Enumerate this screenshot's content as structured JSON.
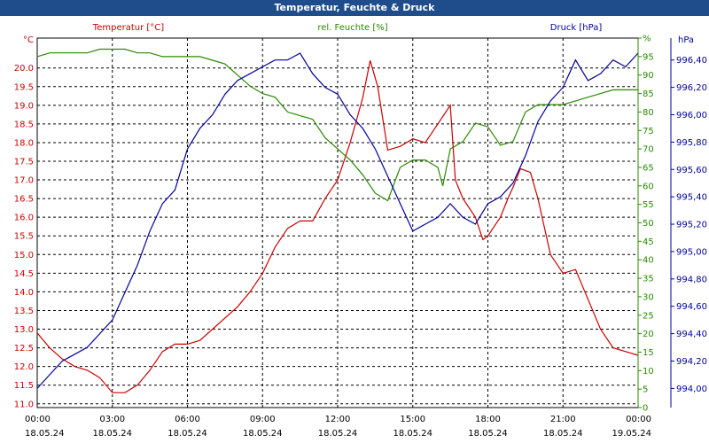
{
  "window": {
    "title": "Temperatur, Feuchte & Druck"
  },
  "chart_data": {
    "type": "line",
    "title": "Temperatur, Feuchte & Druck",
    "axes": {
      "temperature": {
        "label": "Temperatur [°C]",
        "unit": "°C",
        "color": "#cc0000",
        "range": [
          10.9,
          20.8
        ],
        "ticks": [
          "11.0",
          "11.5",
          "12.0",
          "12.5",
          "13.0",
          "13.5",
          "14.0",
          "14.5",
          "15.0",
          "15.5",
          "16.0",
          "16.5",
          "17.0",
          "17.5",
          "18.0",
          "18.5",
          "19.0",
          "19.5",
          "20.0"
        ]
      },
      "humidity": {
        "label": "rel. Feuchte [%]",
        "unit": "%",
        "color": "#2a8a00",
        "range": [
          0,
          100
        ],
        "ticks": [
          "0",
          "5",
          "10",
          "15",
          "20",
          "25",
          "30",
          "35",
          "40",
          "45",
          "50",
          "55",
          "60",
          "65",
          "70",
          "75",
          "80",
          "85",
          "90",
          "95",
          "%"
        ]
      },
      "pressure": {
        "label": "Druck [hPa]",
        "unit": "hPa",
        "color": "#000099",
        "range": [
          993.86,
          996.56
        ],
        "ticks": [
          "994,00",
          "994,20",
          "994,40",
          "994,60",
          "994,80",
          "995,00",
          "995,20",
          "995,40",
          "995,60",
          "995,80",
          "996,00",
          "996,20",
          "996,40"
        ]
      }
    },
    "x_ticks": [
      {
        "time": "00:00",
        "date": "18.05.24"
      },
      {
        "time": "03:00",
        "date": "18.05.24"
      },
      {
        "time": "06:00",
        "date": "18.05.24"
      },
      {
        "time": "09:00",
        "date": "18.05.24"
      },
      {
        "time": "12:00",
        "date": "18.05.24"
      },
      {
        "time": "15:00",
        "date": "18.05.24"
      },
      {
        "time": "18:00",
        "date": "18.05.24"
      },
      {
        "time": "21:00",
        "date": "18.05.24"
      },
      {
        "time": "00:00",
        "date": "19.05.24"
      }
    ],
    "x_range_hours": [
      0,
      24
    ],
    "series": [
      {
        "name": "Temperatur",
        "axis": "temperature",
        "color": "#cc0000",
        "points": [
          [
            0,
            12.9
          ],
          [
            0.5,
            12.5
          ],
          [
            1,
            12.2
          ],
          [
            1.5,
            12.0
          ],
          [
            2,
            11.9
          ],
          [
            2.5,
            11.7
          ],
          [
            3,
            11.3
          ],
          [
            3.5,
            11.3
          ],
          [
            4,
            11.5
          ],
          [
            4.5,
            11.9
          ],
          [
            5,
            12.4
          ],
          [
            5.5,
            12.6
          ],
          [
            6,
            12.6
          ],
          [
            6.5,
            12.7
          ],
          [
            7,
            13.0
          ],
          [
            7.5,
            13.3
          ],
          [
            8,
            13.6
          ],
          [
            8.5,
            14.0
          ],
          [
            9,
            14.5
          ],
          [
            9.5,
            15.2
          ],
          [
            10,
            15.7
          ],
          [
            10.5,
            15.9
          ],
          [
            11,
            15.9
          ],
          [
            11.5,
            16.5
          ],
          [
            12,
            17.0
          ],
          [
            12.5,
            18.0
          ],
          [
            13,
            19.2
          ],
          [
            13.3,
            20.2
          ],
          [
            13.6,
            19.5
          ],
          [
            14,
            17.8
          ],
          [
            14.5,
            17.9
          ],
          [
            15,
            18.1
          ],
          [
            15.5,
            18.0
          ],
          [
            16,
            18.5
          ],
          [
            16.5,
            19.0
          ],
          [
            16.7,
            17.0
          ],
          [
            17,
            16.5
          ],
          [
            17.5,
            16.0
          ],
          [
            17.8,
            15.4
          ],
          [
            18,
            15.5
          ],
          [
            18.5,
            16.0
          ],
          [
            18.8,
            16.5
          ],
          [
            19,
            16.8
          ],
          [
            19.3,
            17.3
          ],
          [
            19.7,
            17.2
          ],
          [
            20,
            16.5
          ],
          [
            20.5,
            15.0
          ],
          [
            21,
            14.5
          ],
          [
            21.5,
            14.6
          ],
          [
            22,
            13.8
          ],
          [
            22.5,
            13.0
          ],
          [
            23,
            12.5
          ],
          [
            23.5,
            12.4
          ],
          [
            24,
            12.3
          ]
        ]
      },
      {
        "name": "rel. Feuchte",
        "axis": "humidity",
        "color": "#2a8a00",
        "points": [
          [
            0,
            95
          ],
          [
            0.5,
            96
          ],
          [
            1,
            96
          ],
          [
            1.5,
            96
          ],
          [
            2,
            96
          ],
          [
            2.5,
            97
          ],
          [
            3,
            97
          ],
          [
            3.5,
            97
          ],
          [
            4,
            96
          ],
          [
            4.5,
            96
          ],
          [
            5,
            95
          ],
          [
            5.5,
            95
          ],
          [
            6,
            95
          ],
          [
            6.5,
            95
          ],
          [
            7,
            94
          ],
          [
            7.5,
            93
          ],
          [
            8,
            90
          ],
          [
            8.5,
            87
          ],
          [
            9,
            85
          ],
          [
            9.5,
            84
          ],
          [
            10,
            80
          ],
          [
            10.5,
            79
          ],
          [
            11,
            78
          ],
          [
            11.5,
            73
          ],
          [
            12,
            70
          ],
          [
            12.5,
            67
          ],
          [
            13,
            63
          ],
          [
            13.5,
            58
          ],
          [
            14,
            56
          ],
          [
            14.5,
            65
          ],
          [
            15,
            67
          ],
          [
            15.5,
            67
          ],
          [
            16,
            65
          ],
          [
            16.2,
            60
          ],
          [
            16.5,
            70
          ],
          [
            17,
            72
          ],
          [
            17.5,
            77
          ],
          [
            18,
            76
          ],
          [
            18.5,
            71
          ],
          [
            19,
            72
          ],
          [
            19.5,
            80
          ],
          [
            20,
            82
          ],
          [
            20.5,
            82
          ],
          [
            21,
            82
          ],
          [
            21.5,
            83
          ],
          [
            22,
            84
          ],
          [
            22.5,
            85
          ],
          [
            23,
            86
          ],
          [
            23.5,
            86
          ],
          [
            24,
            86
          ]
        ]
      },
      {
        "name": "Druck",
        "axis": "pressure",
        "color": "#000099",
        "points": [
          [
            0,
            994.0
          ],
          [
            0.5,
            994.1
          ],
          [
            1,
            994.2
          ],
          [
            1.5,
            994.25
          ],
          [
            2,
            994.3
          ],
          [
            2.5,
            994.4
          ],
          [
            3,
            994.5
          ],
          [
            3.5,
            994.7
          ],
          [
            4,
            994.9
          ],
          [
            4.5,
            995.15
          ],
          [
            5,
            995.35
          ],
          [
            5.5,
            995.45
          ],
          [
            6,
            995.75
          ],
          [
            6.5,
            995.9
          ],
          [
            7,
            996.0
          ],
          [
            7.5,
            996.15
          ],
          [
            8,
            996.25
          ],
          [
            8.5,
            996.3
          ],
          [
            9,
            996.35
          ],
          [
            9.5,
            996.4
          ],
          [
            10,
            996.4
          ],
          [
            10.5,
            996.45
          ],
          [
            11,
            996.3
          ],
          [
            11.5,
            996.2
          ],
          [
            12,
            996.15
          ],
          [
            12.5,
            996.0
          ],
          [
            13,
            995.9
          ],
          [
            13.5,
            995.75
          ],
          [
            14,
            995.55
          ],
          [
            14.5,
            995.35
          ],
          [
            15,
            995.15
          ],
          [
            15.5,
            995.2
          ],
          [
            16,
            995.25
          ],
          [
            16.5,
            995.35
          ],
          [
            17,
            995.25
          ],
          [
            17.5,
            995.2
          ],
          [
            18,
            995.35
          ],
          [
            18.5,
            995.4
          ],
          [
            19,
            995.5
          ],
          [
            19.5,
            995.7
          ],
          [
            20,
            995.95
          ],
          [
            20.5,
            996.1
          ],
          [
            21,
            996.2
          ],
          [
            21.5,
            996.4
          ],
          [
            22,
            996.25
          ],
          [
            22.5,
            996.3
          ],
          [
            23,
            996.4
          ],
          [
            23.5,
            996.35
          ],
          [
            24,
            996.45
          ]
        ]
      }
    ]
  }
}
